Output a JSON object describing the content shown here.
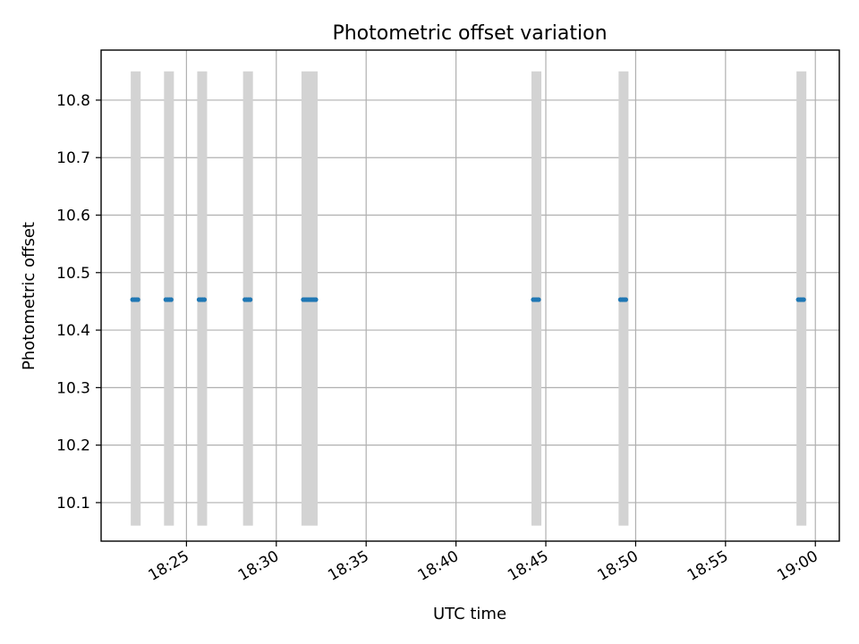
{
  "chart_data": {
    "type": "scatter",
    "title": "Photometric offset variation",
    "xlabel": "UTC time",
    "ylabel": "Photometric offset",
    "x_axis_kind": "time",
    "xlim": [
      "18:20:15",
      "19:01:20"
    ],
    "ylim": [
      10.033,
      10.887
    ],
    "grid": true,
    "x_ticks": [
      "18:25",
      "18:30",
      "18:35",
      "18:40",
      "18:45",
      "18:50",
      "18:55",
      "19:00"
    ],
    "y_ticks": [
      10.1,
      10.2,
      10.3,
      10.4,
      10.5,
      10.6,
      10.7,
      10.8
    ],
    "band_range": [
      10.06,
      10.85
    ],
    "band_color": "#d3d3d3",
    "marker_color": "#1f77b4",
    "bands": [
      {
        "start": "18:21:54",
        "end": "18:22:27"
      },
      {
        "start": "18:23:45",
        "end": "18:24:18"
      },
      {
        "start": "18:25:36",
        "end": "18:26:09"
      },
      {
        "start": "18:28:09",
        "end": "18:28:42"
      },
      {
        "start": "18:31:24",
        "end": "18:32:18"
      },
      {
        "start": "18:44:12",
        "end": "18:44:45"
      },
      {
        "start": "18:49:03",
        "end": "18:49:36"
      },
      {
        "start": "18:58:57",
        "end": "18:59:30"
      }
    ],
    "series": [
      {
        "x": [
          "18:22:00",
          "18:22:06",
          "18:22:12",
          "18:22:18",
          "18:23:51",
          "18:23:57",
          "18:24:03",
          "18:24:09",
          "18:25:42",
          "18:25:48",
          "18:25:54",
          "18:26:00",
          "18:28:15",
          "18:28:21",
          "18:28:27",
          "18:28:33",
          "18:31:30",
          "18:31:36",
          "18:31:42",
          "18:31:48",
          "18:31:54",
          "18:32:00",
          "18:32:06",
          "18:32:12",
          "18:44:18",
          "18:44:24",
          "18:44:30",
          "18:44:36",
          "18:49:09",
          "18:49:15",
          "18:49:21",
          "18:49:27",
          "18:59:03",
          "18:59:09",
          "18:59:15",
          "18:59:21"
        ],
        "y": [
          10.453,
          10.453,
          10.453,
          10.453,
          10.453,
          10.453,
          10.453,
          10.453,
          10.453,
          10.453,
          10.453,
          10.453,
          10.453,
          10.453,
          10.453,
          10.453,
          10.453,
          10.453,
          10.453,
          10.453,
          10.453,
          10.453,
          10.453,
          10.453,
          10.453,
          10.453,
          10.453,
          10.453,
          10.453,
          10.453,
          10.453,
          10.453,
          10.453,
          10.453,
          10.453,
          10.453
        ]
      }
    ]
  }
}
